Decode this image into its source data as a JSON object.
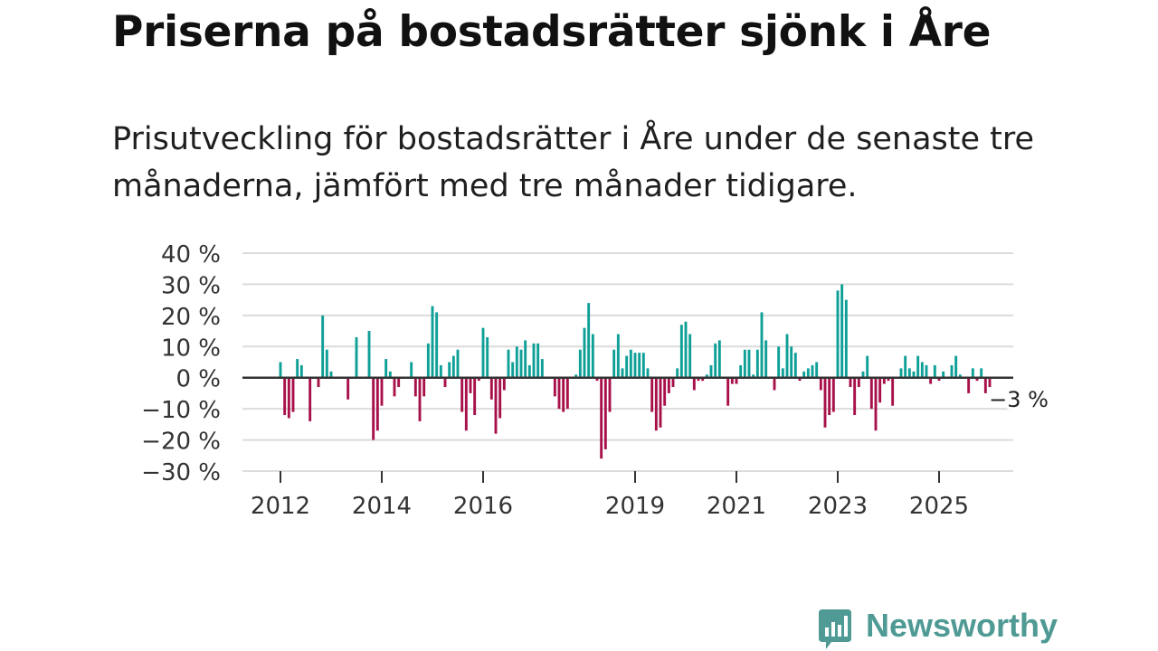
{
  "header": {
    "title": "Priserna på bostadsrätter sjönk i Åre",
    "subtitle": "Prisutveckling för bostadsrätter i Åre under de senaste tre månaderna, jämfört med tre månader tidigare."
  },
  "brand": {
    "name": "Newsworthy",
    "color": "#4f9a94"
  },
  "chart_data": {
    "type": "bar",
    "title": "",
    "xlabel": "",
    "ylabel": "",
    "ylim": [
      -30,
      40
    ],
    "y_ticks": [
      40,
      30,
      20,
      10,
      0,
      -10,
      -20,
      -30
    ],
    "y_tick_labels": [
      "40 %",
      "30 %",
      "20 %",
      "10 %",
      "0 %",
      "−10 %",
      "−20 %",
      "−30 %"
    ],
    "x_tick_labels": [
      "2012",
      "2014",
      "2016",
      "2019",
      "2021",
      "2023",
      "2025"
    ],
    "x_tick_years": [
      2012,
      2014,
      2016,
      2019,
      2021,
      2023,
      2025
    ],
    "start_year": 2012,
    "start_month": 1,
    "positive_color": "#0e9f97",
    "negative_color": "#a8104a",
    "grid": true,
    "annotation": {
      "label": "−3 %",
      "value": -3
    },
    "values": [
      5,
      -12,
      -13,
      -11,
      6,
      4,
      0,
      -14,
      0,
      -3,
      20,
      9,
      2,
      0,
      0,
      0,
      -7,
      0,
      13,
      0,
      0,
      15,
      -20,
      -17,
      -9,
      6,
      2,
      -6,
      -3,
      0,
      0,
      5,
      -6,
      -14,
      -6,
      11,
      23,
      21,
      4,
      -3,
      5,
      7,
      9,
      -11,
      -17,
      -5,
      -12,
      -1,
      16,
      13,
      -7,
      -18,
      -13,
      -4,
      9,
      5,
      10,
      9,
      12,
      4,
      11,
      11,
      6,
      0,
      0,
      -6,
      -10,
      -11,
      -10,
      0,
      1,
      9,
      16,
      24,
      14,
      -1,
      -26,
      -23,
      -11,
      9,
      14,
      3,
      7,
      9,
      8,
      8,
      8,
      3,
      -11,
      -17,
      -16,
      -9,
      -5,
      -3,
      3,
      17,
      18,
      14,
      -4,
      -1,
      -1,
      1,
      4,
      11,
      12,
      0,
      -9,
      -2,
      -2,
      4,
      9,
      9,
      1,
      9,
      21,
      12,
      0,
      -4,
      10,
      3,
      14,
      10,
      8,
      -1,
      2,
      3,
      4,
      5,
      -4,
      -16,
      -12,
      -11,
      28,
      30,
      25,
      -3,
      -12,
      -3,
      2,
      7,
      -10,
      -17,
      -8,
      -2,
      -1,
      -9,
      0,
      3,
      7,
      3,
      2,
      7,
      5,
      4,
      -2,
      4,
      -1,
      2,
      0,
      4,
      7,
      1,
      0,
      -5,
      3,
      -1,
      3,
      -5,
      -3
    ]
  }
}
